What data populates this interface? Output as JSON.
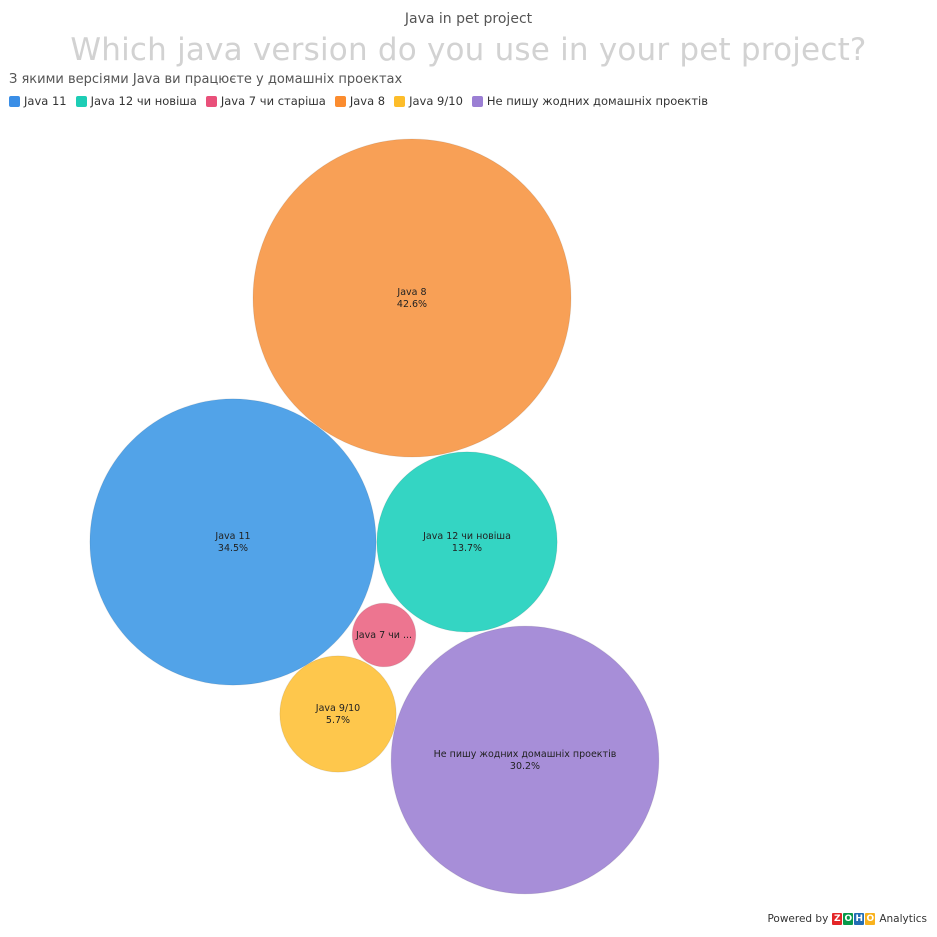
{
  "header": {
    "title": "Java in pet project"
  },
  "chart_data": {
    "type": "bubble",
    "title": "Which java version do you use in your pet project?",
    "subtitle": "З якими версіями Java ви працюєте у домашніх проектах",
    "legend_position": "top-left",
    "categories": [
      "Java 11",
      "Java 12 чи новіша",
      "Java 7 чи старіша",
      "Java 8",
      "Java 9/10",
      "Не пишу жодних домашніх проектів"
    ],
    "series": [
      {
        "name": "Java 11",
        "value": 34.5,
        "value_label": "34.5%",
        "color": "#52a3e8"
      },
      {
        "name": "Java 12 чи новіша",
        "value": 13.7,
        "value_label": "13.7%",
        "color": "#34d5c3"
      },
      {
        "name": "Java 7 чи старіша",
        "value": 1.7,
        "value_label": "",
        "display_label": "Java 7 чи ...",
        "color": "#ed7590"
      },
      {
        "name": "Java 8",
        "value": 42.6,
        "value_label": "42.6%",
        "color": "#f8a056"
      },
      {
        "name": "Java 9/10",
        "value": 5.7,
        "value_label": "5.7%",
        "color": "#fec74c"
      },
      {
        "name": "Не пишу жодних домашніх проектів",
        "value": 30.2,
        "value_label": "30.2%",
        "color": "#a78ed8"
      }
    ]
  },
  "legend": {
    "colors": [
      "#3a8ee6",
      "#1dcdb5",
      "#e9507a",
      "#fb8c2f",
      "#fdbd2a",
      "#9b7fd4"
    ]
  },
  "footer": {
    "powered_by": "Powered by",
    "brand_letters": [
      "Z",
      "O",
      "H",
      "O"
    ],
    "brand_colors": [
      "#e42527",
      "#089949",
      "#226db4",
      "#f9b21d"
    ],
    "product": "Analytics"
  }
}
